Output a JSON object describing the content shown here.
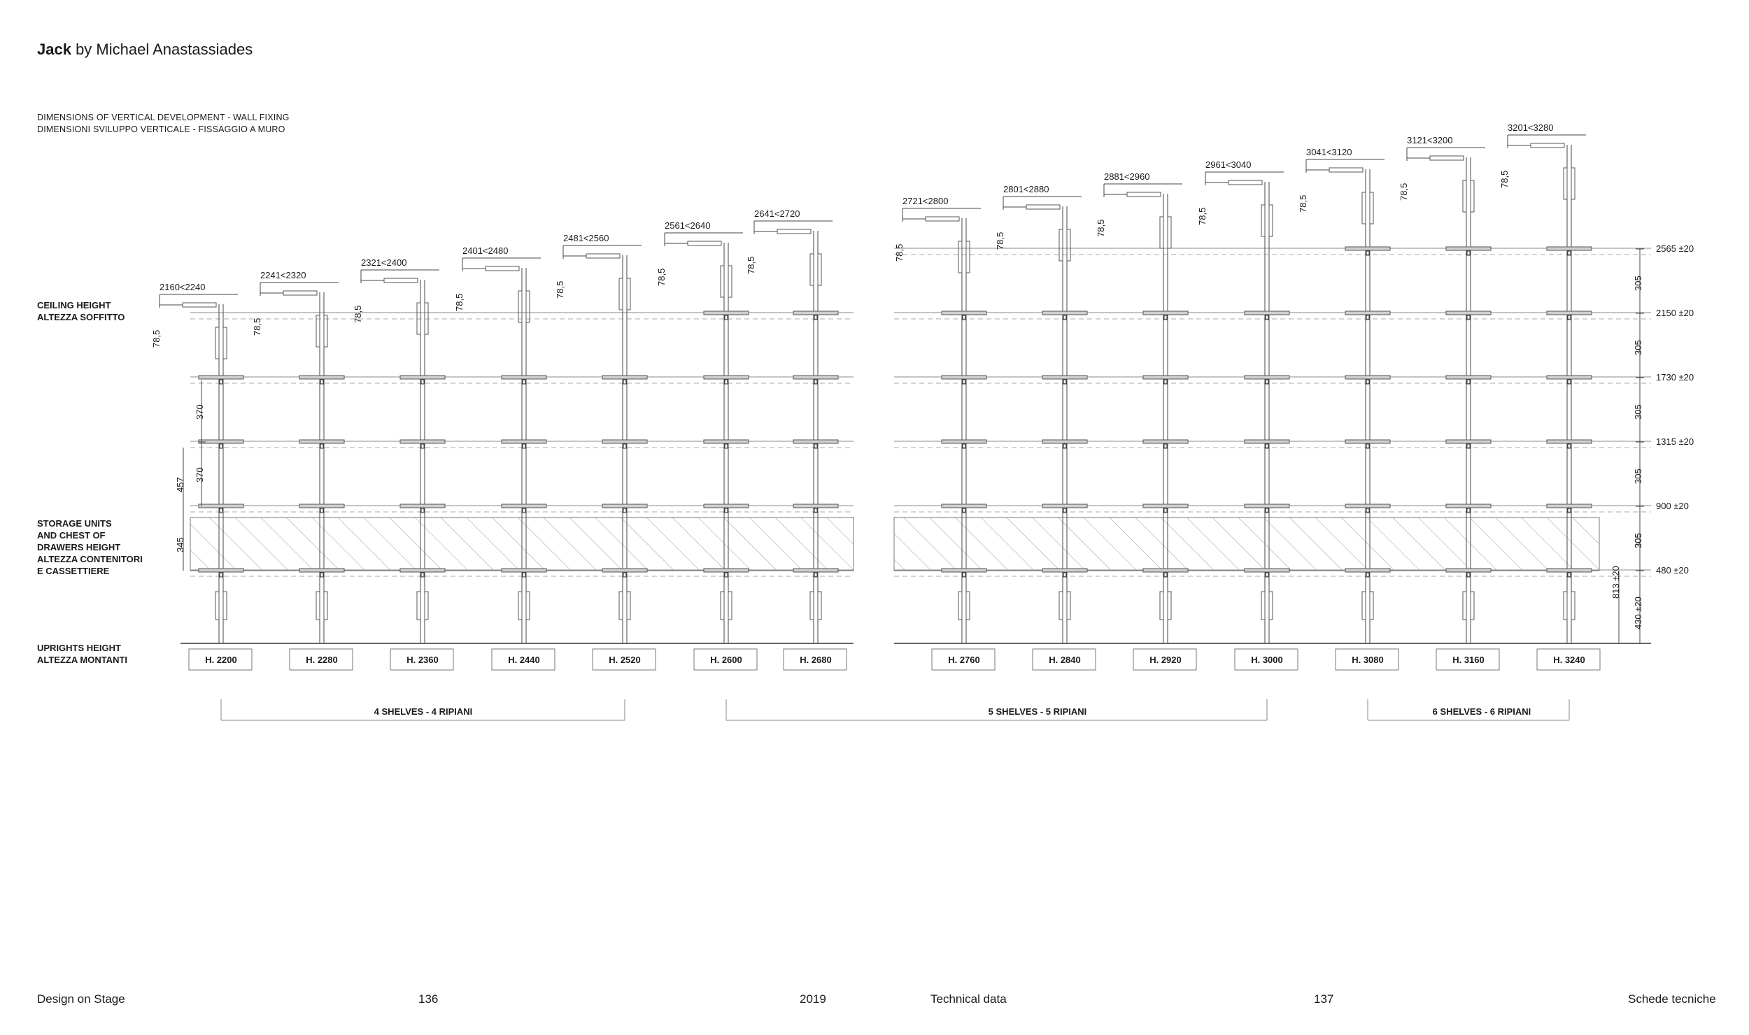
{
  "header": {
    "title_bold": "Jack",
    "title_rest": " by Michael Anastassiades",
    "subtitle_en": "DIMENSIONS OF VERTICAL DEVELOPMENT - WALL FIXING",
    "subtitle_it": "DIMENSIONI SVILUPPO VERTICALE - FISSAGGIO A MURO"
  },
  "labels": {
    "ceiling": "CEILING HEIGHT\nALTEZZA SOFFITTO",
    "storage": "STORAGE UNITS\nAND CHEST OF\nDRAWERS HEIGHT\nALTEZZA CONTENITORI\nE CASSETTIERE",
    "uprights": "UPRIGHTS HEIGHT\nALTEZZA MONTANTI"
  },
  "diagram": {
    "joint_dim": "78,5",
    "left_spacing_370": "370",
    "left_spacing_370b": "370",
    "left_457": "457",
    "left_345": "345",
    "columns": [
      {
        "uprights_label": "H. 2200",
        "ceiling_label": "2160<2240",
        "shelves": 4
      },
      {
        "uprights_label": "H. 2280",
        "ceiling_label": "2241<2320",
        "shelves": 4
      },
      {
        "uprights_label": "H. 2360",
        "ceiling_label": "2321<2400",
        "shelves": 4
      },
      {
        "uprights_label": "H. 2440",
        "ceiling_label": "2401<2480",
        "shelves": 4
      },
      {
        "uprights_label": "H. 2520",
        "ceiling_label": "2481<2560",
        "shelves": 4
      },
      {
        "uprights_label": "H. 2600",
        "ceiling_label": "2561<2640",
        "shelves": 5
      },
      {
        "uprights_label": "H. 2680",
        "ceiling_label": "2641<2720",
        "shelves": 5
      },
      {
        "uprights_label": "H. 2760",
        "ceiling_label": "2721<2800",
        "shelves": 5
      },
      {
        "uprights_label": "H. 2840",
        "ceiling_label": "2801<2880",
        "shelves": 5
      },
      {
        "uprights_label": "H. 2920",
        "ceiling_label": "2881<2960",
        "shelves": 5
      },
      {
        "uprights_label": "H. 3000",
        "ceiling_label": "2961<3040",
        "shelves": 5
      },
      {
        "uprights_label": "H. 3080",
        "ceiling_label": "3041<3120",
        "shelves": 6
      },
      {
        "uprights_label": "H. 3160",
        "ceiling_label": "3121<3200",
        "shelves": 6
      },
      {
        "uprights_label": "H. 3240",
        "ceiling_label": "3201<3280",
        "shelves": 6
      }
    ],
    "shelf_heights": [
      {
        "label": "480 ±20",
        "spacing": "305"
      },
      {
        "label": "900 ±20",
        "spacing": "305"
      },
      {
        "label": "1315 ±20",
        "spacing": "305"
      },
      {
        "label": "1730 ±20",
        "spacing": "305"
      },
      {
        "label": "2150 ±20",
        "spacing": "305"
      },
      {
        "label": "2565 ±20",
        "spacing": "305"
      }
    ],
    "right_813": "813 ±20",
    "right_430": "430 ±20",
    "groups": [
      {
        "label": "4 SHELVES - 4 RIPIANI"
      },
      {
        "label": "5 SHELVES - 5 RIPIANI"
      },
      {
        "label": "6 SHELVES - 6 RIPIANI"
      }
    ]
  },
  "footer": {
    "left_section": "Design on Stage",
    "left_page": "136",
    "year": "2019",
    "right_section": "Technical data",
    "right_page": "137",
    "right_section_it": "Schede tecniche"
  }
}
